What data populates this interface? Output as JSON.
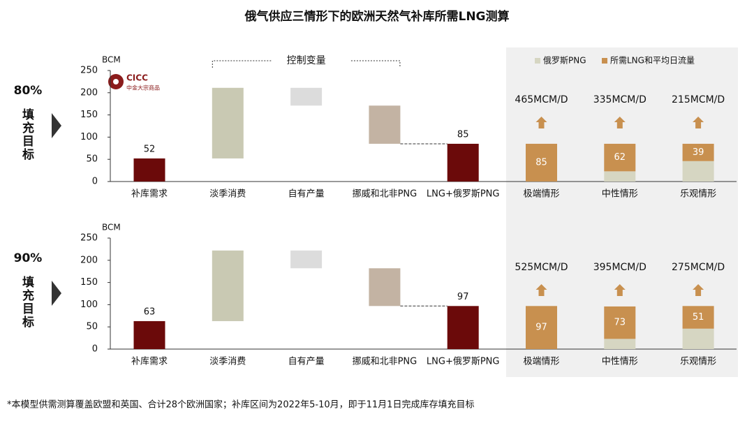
{
  "title": "俄气供应三情形下的欧洲天然气补库所需LNG测算",
  "footnote": "*本模型供需测算覆盖欧盟和英国、合计28个欧洲国家；补库区间为2022年5-10月，即于11月1日完成库存填充目标",
  "logo": {
    "name": "CICC",
    "subtitle": "中金大宗商品"
  },
  "chart_data": [
    {
      "type": "waterfall",
      "row_label": "80%",
      "row_label_text": "填充目标",
      "ylabel": "BCM",
      "annotation": "控制变量",
      "categories": [
        "补库需求",
        "淡季消费",
        "自有产量",
        "挪威和北非PNG",
        "LNG+俄罗斯PNG"
      ],
      "values": [
        52,
        159,
        -40,
        -86,
        85
      ],
      "measure": [
        "total",
        "relative",
        "relative",
        "relative",
        "total"
      ],
      "colors": [
        "#6b0a0a",
        "#c9c9b3",
        "#dcdcdc",
        "#c3b3a3",
        "#6b0a0a"
      ],
      "ylim": [
        0,
        250
      ],
      "yticks": [
        0,
        50,
        100,
        150,
        200,
        250
      ]
    },
    {
      "type": "stacked",
      "ylim": [
        0,
        250
      ],
      "legend": "top",
      "categories": [
        "极端情形",
        "中性情形",
        "乐观情形"
      ],
      "flow_labels": [
        "465MCM/D",
        "335MCM/D",
        "215MCM/D"
      ],
      "series": [
        {
          "name": "俄罗斯PNG",
          "color": "#d6d6c2",
          "values": [
            0,
            23,
            46
          ]
        },
        {
          "name": "所需LNG和平均日流量",
          "color": "#c8904f",
          "values": [
            85,
            62,
            39
          ],
          "show_labels": true
        }
      ]
    },
    {
      "type": "waterfall",
      "row_label": "90%",
      "row_label_text": "填充目标",
      "ylabel": "BCM",
      "categories": [
        "补库需求",
        "淡季消费",
        "自有产量",
        "挪威和北非PNG",
        "LNG+俄罗斯PNG"
      ],
      "values": [
        63,
        159,
        -40,
        -85,
        97
      ],
      "measure": [
        "total",
        "relative",
        "relative",
        "relative",
        "total"
      ],
      "colors": [
        "#6b0a0a",
        "#c9c9b3",
        "#dcdcdc",
        "#c3b3a3",
        "#6b0a0a"
      ],
      "ylim": [
        0,
        250
      ],
      "yticks": [
        0,
        50,
        100,
        150,
        200,
        250
      ]
    },
    {
      "type": "stacked",
      "ylim": [
        0,
        250
      ],
      "categories": [
        "极端情形",
        "中性情形",
        "乐观情形"
      ],
      "flow_labels": [
        "525MCM/D",
        "395MCM/D",
        "275MCM/D"
      ],
      "series": [
        {
          "color": "#d6d6c2",
          "values": [
            0,
            23,
            46
          ]
        },
        {
          "color": "#c8904f",
          "values": [
            97,
            73,
            51
          ],
          "show_labels": true
        }
      ]
    }
  ]
}
